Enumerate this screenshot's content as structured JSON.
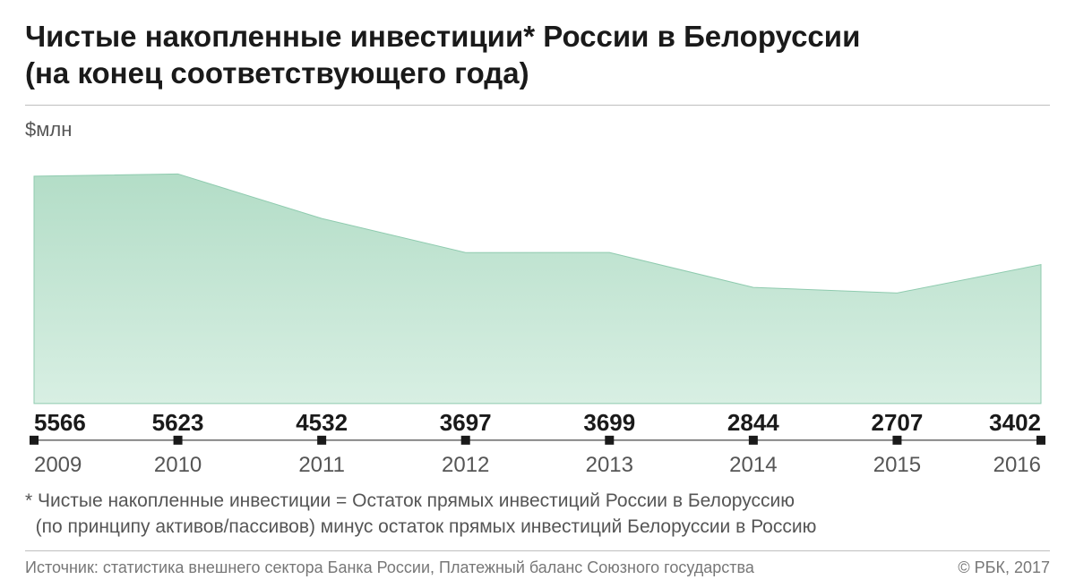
{
  "title_line1": "Чистые накопленные инвестиции* России в Белоруссии",
  "title_line2": "(на конец соответствующего года)",
  "y_axis_label": "$млн",
  "chart": {
    "type": "area",
    "years": [
      "2009",
      "2010",
      "2011",
      "2012",
      "2013",
      "2014",
      "2015",
      "2016"
    ],
    "values": [
      5566,
      5623,
      4532,
      3697,
      3699,
      2844,
      2707,
      3402
    ],
    "y_max_visual": 6200,
    "y_min_visual": 0,
    "area_fill_top": "#b3ddc7",
    "area_fill_bottom": "#d8efe3",
    "area_stroke": "#8fcbaf",
    "area_stroke_width": 1,
    "value_fontsize": 26,
    "year_fontsize": 24,
    "tick_size": 10,
    "background_color": "#ffffff",
    "divider_color": "#bfbfbf"
  },
  "footnote_line1": "* Чистые накопленные инвестиции = Остаток прямых инвестиций России в Белоруссию",
  "footnote_line2": "(по принципу активов/пассивов) минус остаток прямых инвестиций Белоруссии в Россию",
  "source_text": "Источник: статистика внешнего сектора Банка России, Платежный баланс Союзного государства",
  "copyright_text": "© РБК, 2017"
}
